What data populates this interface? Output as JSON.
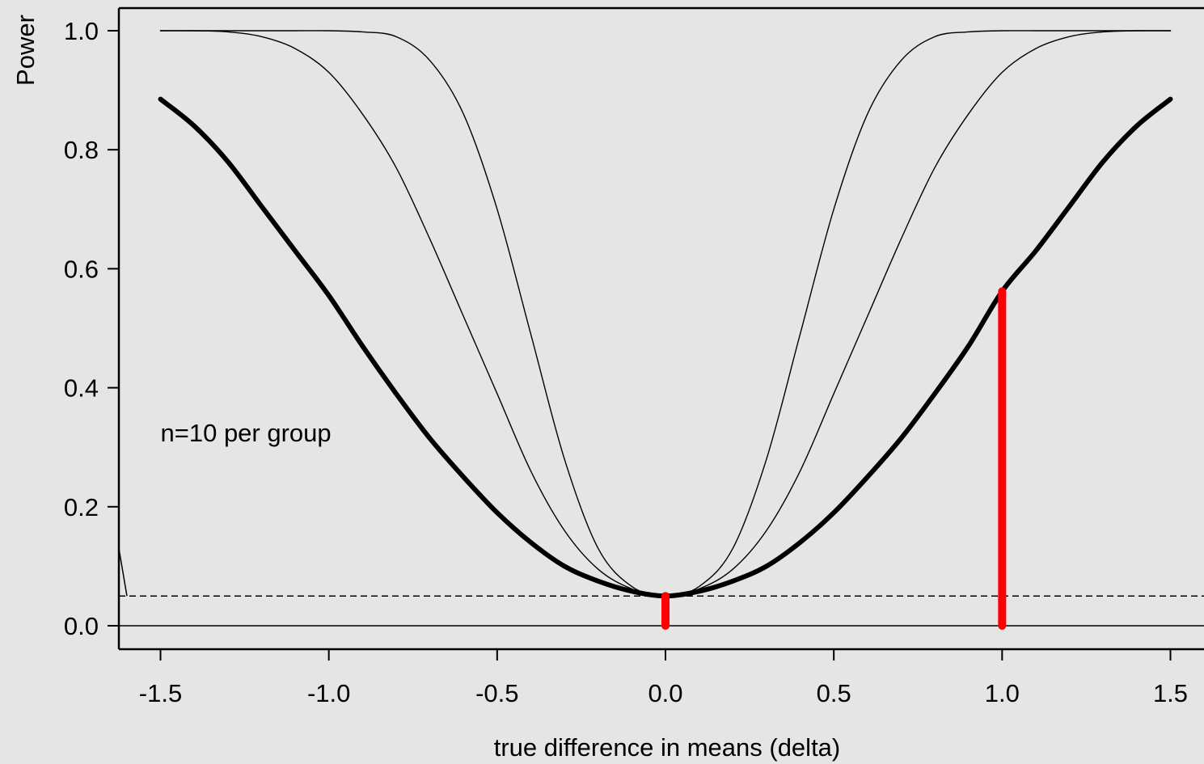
{
  "chart_data": {
    "type": "line",
    "title": "",
    "xlabel": "true difference in means (delta)",
    "ylabel": "Power",
    "xlim": [
      -1.62,
      1.62
    ],
    "ylim": [
      -0.04,
      1.04
    ],
    "x_ticks": [
      -1.5,
      -1.0,
      -0.5,
      0.0,
      0.5,
      1.0,
      1.5
    ],
    "x_tick_labels": [
      "-1.5",
      "-1.0",
      "-0.5",
      "0.0",
      "0.5",
      "1.0",
      "1.5"
    ],
    "y_ticks": [
      0.0,
      0.2,
      0.4,
      0.6,
      0.8,
      1.0
    ],
    "y_tick_labels": [
      "0.0",
      "0.2",
      "0.4",
      "0.6",
      "0.8",
      "1.0"
    ],
    "grid": false,
    "legend": "none",
    "annotation": {
      "text": "n=10 per group",
      "x": -1.5,
      "y": 0.31
    },
    "reference_lines": [
      {
        "type": "horizontal",
        "y": 0.0,
        "style": "solid"
      },
      {
        "type": "horizontal",
        "y": 0.05,
        "style": "dashed"
      }
    ],
    "series": [
      {
        "style": "thick",
        "color": "#000000",
        "x": [
          -1.5,
          -1.4,
          -1.3,
          -1.2,
          -1.1,
          -1.0,
          -0.9,
          -0.8,
          -0.7,
          -0.6,
          -0.5,
          -0.4,
          -0.3,
          -0.2,
          -0.1,
          0.0,
          0.1,
          0.2,
          0.3,
          0.4,
          0.5,
          0.6,
          0.7,
          0.8,
          0.9,
          1.0,
          1.1,
          1.2,
          1.3,
          1.4,
          1.5
        ],
        "y": [
          0.885,
          0.84,
          0.78,
          0.705,
          0.63,
          0.555,
          0.47,
          0.39,
          0.315,
          0.25,
          0.19,
          0.14,
          0.1,
          0.075,
          0.058,
          0.05,
          0.058,
          0.075,
          0.1,
          0.14,
          0.19,
          0.25,
          0.315,
          0.39,
          0.47,
          0.562,
          0.63,
          0.705,
          0.78,
          0.84,
          0.885
        ]
      },
      {
        "style": "thin",
        "color": "#000000",
        "x": [
          -1.5,
          -1.4,
          -1.3,
          -1.2,
          -1.1,
          -1.0,
          -0.9,
          -0.8,
          -0.7,
          -0.6,
          -0.5,
          -0.4,
          -0.3,
          -0.2,
          -0.1,
          0.0,
          0.1,
          0.2,
          0.3,
          0.4,
          0.5,
          0.6,
          0.7,
          0.8,
          0.9,
          1.0,
          1.1,
          1.2,
          1.3,
          1.4,
          1.5
        ],
        "y": [
          1.0,
          1.0,
          0.998,
          0.99,
          0.97,
          0.93,
          0.86,
          0.77,
          0.65,
          0.52,
          0.39,
          0.26,
          0.16,
          0.095,
          0.062,
          0.05,
          0.062,
          0.095,
          0.16,
          0.26,
          0.39,
          0.52,
          0.65,
          0.77,
          0.86,
          0.93,
          0.97,
          0.99,
          0.998,
          1.0,
          1.0
        ]
      },
      {
        "style": "thin",
        "color": "#000000",
        "x": [
          -1.5,
          -1.4,
          -1.3,
          -1.2,
          -1.1,
          -1.0,
          -0.9,
          -0.8,
          -0.7,
          -0.6,
          -0.5,
          -0.4,
          -0.3,
          -0.2,
          -0.1,
          0.0,
          0.1,
          0.2,
          0.3,
          0.4,
          0.5,
          0.6,
          0.7,
          0.8,
          0.9,
          1.0,
          1.1,
          1.2,
          1.3,
          1.4,
          1.5
        ],
        "y": [
          1.0,
          1.0,
          1.0,
          1.0,
          1.0,
          1.0,
          0.998,
          0.99,
          0.95,
          0.86,
          0.7,
          0.49,
          0.28,
          0.13,
          0.066,
          0.05,
          0.066,
          0.13,
          0.28,
          0.49,
          0.7,
          0.86,
          0.95,
          0.99,
          0.998,
          1.0,
          1.0,
          1.0,
          1.0,
          1.0,
          1.0
        ]
      }
    ],
    "highlight_segments": [
      {
        "x": 0.0,
        "y0": 0.0,
        "y1": 0.05,
        "color": "#ff0000"
      },
      {
        "x": 1.0,
        "y0": 0.0,
        "y1": 0.562,
        "color": "#ff0000"
      }
    ]
  }
}
